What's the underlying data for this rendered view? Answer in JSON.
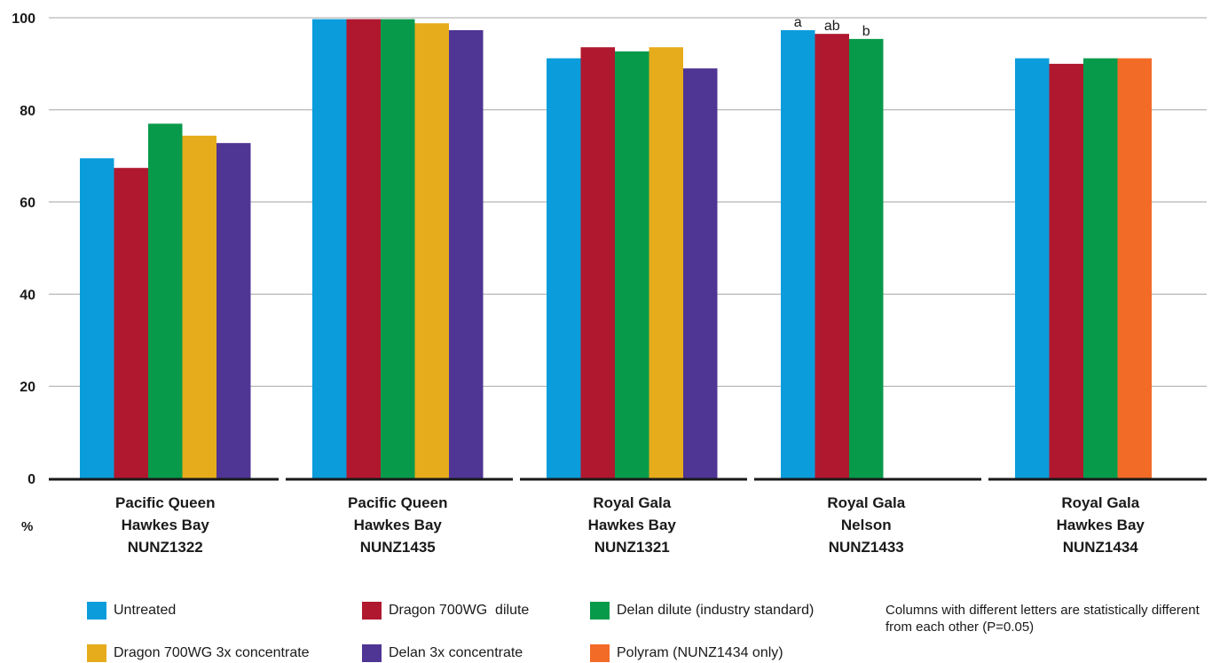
{
  "chart_data": {
    "type": "bar",
    "ylabel": "%",
    "ylim": [
      0,
      100
    ],
    "yticks": [
      0,
      20,
      40,
      60,
      80,
      100
    ],
    "grid": true,
    "legend_position": "bottom",
    "groups": [
      {
        "lines": [
          "Pacific Queen",
          "Hawkes Bay",
          "NUNZ1322"
        ]
      },
      {
        "lines": [
          "Pacific Queen",
          "Hawkes Bay",
          "NUNZ1435"
        ]
      },
      {
        "lines": [
          "Royal Gala",
          "Hawkes Bay",
          "NUNZ1321"
        ]
      },
      {
        "lines": [
          "Royal Gala",
          "Nelson",
          "NUNZ1433"
        ]
      },
      {
        "lines": [
          "Royal Gala",
          "Hawkes Bay",
          "NUNZ1434"
        ]
      }
    ],
    "series": [
      {
        "name": "Untreated",
        "color": "#0b9ddb",
        "values": [
          69.5,
          99.7,
          91.2,
          97.3,
          91.2
        ]
      },
      {
        "name": "Dragon 700WG  dilute",
        "color": "#b0182f",
        "values": [
          67.4,
          99.7,
          93.6,
          96.5,
          90.0
        ]
      },
      {
        "name": "Delan dilute (industry standard)",
        "color": "#089a4b",
        "values": [
          77.0,
          99.7,
          92.7,
          95.4,
          91.2
        ]
      },
      {
        "name": "Dragon 700WG 3x concentrate",
        "color": "#e6ac1b",
        "values": [
          74.4,
          98.8,
          93.6,
          null,
          null
        ]
      },
      {
        "name": "Delan 3x concentrate",
        "color": "#4f3594",
        "values": [
          72.8,
          97.3,
          89.0,
          null,
          null
        ]
      },
      {
        "name": "Polyram (NUNZ1434 only)",
        "color": "#f26b27",
        "values": [
          null,
          null,
          null,
          null,
          91.2
        ]
      }
    ],
    "annotations": [
      {
        "group": 3,
        "series": 0,
        "text": "a"
      },
      {
        "group": 3,
        "series": 1,
        "text": "ab"
      },
      {
        "group": 3,
        "series": 2,
        "text": "b"
      }
    ],
    "footnote": "Columns with different letters are statistically different from each other (P=0.05)"
  }
}
